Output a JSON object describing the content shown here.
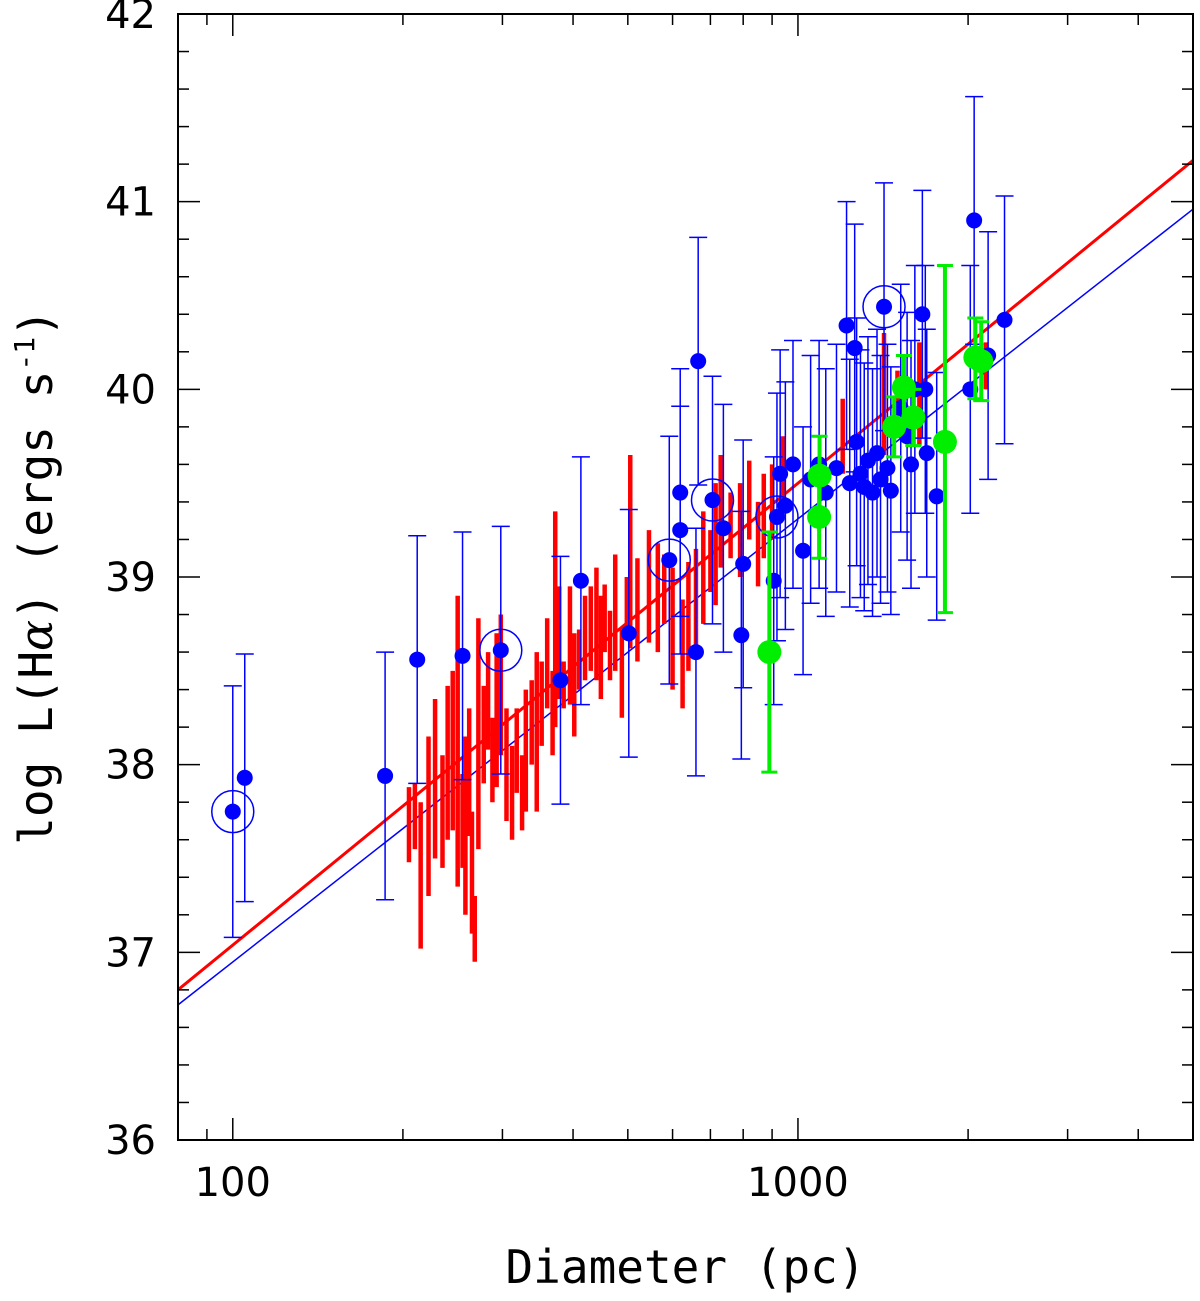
{
  "chart_data": {
    "type": "scatter",
    "title": "",
    "xlabel": "Diameter (pc)",
    "ylabel_parts": {
      "pre": "log L(H",
      "alpha": "α",
      "mid": ") (ergs s",
      "sup": "-1",
      "post": ")"
    },
    "x_scale": "log",
    "xlim": [
      80,
      5000
    ],
    "ylim": [
      36,
      42
    ],
    "x_major_ticks": [
      100,
      1000
    ],
    "x_major_labels": [
      "100",
      "1000"
    ],
    "y_major_ticks": [
      36,
      37,
      38,
      39,
      40,
      41,
      42
    ],
    "y_major_labels": [
      "36",
      "37",
      "38",
      "39",
      "40",
      "41",
      "42"
    ],
    "fit_lines": [
      {
        "name": "red fit",
        "color": "#ff0000",
        "x": [
          80,
          5000
        ],
        "y": [
          36.8,
          41.22
        ]
      },
      {
        "name": "blue fit",
        "color": "#0000ff",
        "x": [
          80,
          5000
        ],
        "y": [
          36.72,
          40.96
        ]
      }
    ],
    "series": [
      {
        "name": "blue sample",
        "color": "#0000ff",
        "points": [
          {
            "x": 100,
            "y": 37.75,
            "lo": 37.08,
            "hi": 38.42,
            "circled": true
          },
          {
            "x": 105,
            "y": 37.93,
            "lo": 37.27,
            "hi": 38.59
          },
          {
            "x": 186,
            "y": 37.94,
            "lo": 37.28,
            "hi": 38.6
          },
          {
            "x": 212,
            "y": 38.56,
            "lo": 37.9,
            "hi": 39.22
          },
          {
            "x": 255,
            "y": 38.58,
            "lo": 37.92,
            "hi": 39.24
          },
          {
            "x": 298,
            "y": 38.61,
            "lo": 37.95,
            "hi": 39.27,
            "circled": true
          },
          {
            "x": 380,
            "y": 38.45,
            "lo": 37.79,
            "hi": 39.11
          },
          {
            "x": 413,
            "y": 38.98,
            "lo": 38.32,
            "hi": 39.64
          },
          {
            "x": 502,
            "y": 38.7,
            "lo": 38.04,
            "hi": 39.36
          },
          {
            "x": 592,
            "y": 39.09,
            "lo": 38.43,
            "hi": 39.75,
            "circled": true
          },
          {
            "x": 619,
            "y": 39.25,
            "lo": 38.59,
            "hi": 39.91
          },
          {
            "x": 619,
            "y": 39.45,
            "lo": 38.79,
            "hi": 40.11
          },
          {
            "x": 660,
            "y": 38.6,
            "lo": 37.94,
            "hi": 39.26
          },
          {
            "x": 666,
            "y": 40.15,
            "lo": 39.49,
            "hi": 40.81
          },
          {
            "x": 706,
            "y": 39.41,
            "lo": 38.75,
            "hi": 40.07,
            "circled": true
          },
          {
            "x": 738,
            "y": 39.26,
            "lo": 38.6,
            "hi": 39.92
          },
          {
            "x": 794,
            "y": 38.69,
            "lo": 38.03,
            "hi": 39.35
          },
          {
            "x": 800,
            "y": 39.07,
            "lo": 38.41,
            "hi": 39.73
          },
          {
            "x": 906,
            "y": 38.98,
            "lo": 38.32,
            "hi": 39.64
          },
          {
            "x": 918,
            "y": 39.32,
            "lo": 38.66,
            "hi": 39.98,
            "circled": true
          },
          {
            "x": 930,
            "y": 39.55,
            "lo": 38.89,
            "hi": 40.21
          },
          {
            "x": 950,
            "y": 39.38,
            "lo": 38.72,
            "hi": 40.04
          },
          {
            "x": 980,
            "y": 39.6,
            "lo": 38.94,
            "hi": 40.26
          },
          {
            "x": 1021,
            "y": 39.14,
            "lo": 38.48,
            "hi": 39.8
          },
          {
            "x": 1053,
            "y": 39.52,
            "lo": 38.86,
            "hi": 40.18
          },
          {
            "x": 1090,
            "y": 39.6,
            "lo": 38.94,
            "hi": 40.26
          },
          {
            "x": 1120,
            "y": 39.45,
            "lo": 38.79,
            "hi": 40.11
          },
          {
            "x": 1170,
            "y": 39.58,
            "lo": 38.92,
            "hi": 40.24
          },
          {
            "x": 1219,
            "y": 40.34,
            "lo": 39.68,
            "hi": 41.0
          },
          {
            "x": 1235,
            "y": 39.5,
            "lo": 38.84,
            "hi": 40.16
          },
          {
            "x": 1260,
            "y": 40.22,
            "lo": 39.56,
            "hi": 40.88
          },
          {
            "x": 1270,
            "y": 39.72,
            "lo": 39.06,
            "hi": 40.38
          },
          {
            "x": 1290,
            "y": 39.55,
            "lo": 38.89,
            "hi": 40.21
          },
          {
            "x": 1310,
            "y": 39.48,
            "lo": 38.82,
            "hi": 40.14
          },
          {
            "x": 1330,
            "y": 39.62,
            "lo": 38.96,
            "hi": 40.28
          },
          {
            "x": 1355,
            "y": 39.45,
            "lo": 38.79,
            "hi": 40.11
          },
          {
            "x": 1380,
            "y": 39.66,
            "lo": 39.0,
            "hi": 40.32
          },
          {
            "x": 1400,
            "y": 39.52,
            "lo": 38.86,
            "hi": 40.18
          },
          {
            "x": 1420,
            "y": 40.44,
            "lo": 39.78,
            "hi": 41.1,
            "circled": true
          },
          {
            "x": 1440,
            "y": 39.58,
            "lo": 38.92,
            "hi": 40.24
          },
          {
            "x": 1460,
            "y": 39.46,
            "lo": 38.8,
            "hi": 40.12
          },
          {
            "x": 1520,
            "y": 39.9,
            "lo": 39.24,
            "hi": 40.56
          },
          {
            "x": 1560,
            "y": 39.75,
            "lo": 39.09,
            "hi": 40.41
          },
          {
            "x": 1585,
            "y": 39.6,
            "lo": 38.94,
            "hi": 40.26
          },
          {
            "x": 1610,
            "y": 40.0,
            "lo": 39.34,
            "hi": 40.66
          },
          {
            "x": 1660,
            "y": 40.4,
            "lo": 39.74,
            "hi": 41.06
          },
          {
            "x": 1680,
            "y": 40.0,
            "lo": 39.34,
            "hi": 40.66
          },
          {
            "x": 1690,
            "y": 39.66,
            "lo": 39.0,
            "hi": 40.32
          },
          {
            "x": 1760,
            "y": 39.43,
            "lo": 38.77,
            "hi": 40.09
          },
          {
            "x": 2018,
            "y": 40.0,
            "lo": 39.34,
            "hi": 40.66
          },
          {
            "x": 2050,
            "y": 40.9,
            "lo": 40.24,
            "hi": 41.56
          },
          {
            "x": 2170,
            "y": 40.18,
            "lo": 39.52,
            "hi": 40.84
          },
          {
            "x": 2320,
            "y": 40.37,
            "lo": 39.71,
            "hi": 41.03
          }
        ]
      },
      {
        "name": "green sample",
        "color": "#00ee00",
        "points": [
          {
            "x": 890,
            "y": 38.6,
            "lo": 37.96,
            "hi": 39.24
          },
          {
            "x": 1090,
            "y": 39.32,
            "lo": 39.1,
            "hi": 39.55
          },
          {
            "x": 1092,
            "y": 39.54,
            "lo": 39.32,
            "hi": 39.75
          },
          {
            "x": 1480,
            "y": 39.8,
            "lo": 39.64,
            "hi": 39.96
          },
          {
            "x": 1540,
            "y": 40.01,
            "lo": 39.82,
            "hi": 40.18
          },
          {
            "x": 1600,
            "y": 39.85,
            "lo": 39.7,
            "hi": 40.0
          },
          {
            "x": 1820,
            "y": 39.72,
            "lo": 38.81,
            "hi": 40.66
          },
          {
            "x": 2060,
            "y": 40.17,
            "lo": 39.95,
            "hi": 40.38
          },
          {
            "x": 2110,
            "y": 40.15,
            "lo": 39.94,
            "hi": 40.36
          }
        ]
      },
      {
        "name": "red sample",
        "color": "#ff0000",
        "segments": [
          [
            205,
            37.48,
            37.88
          ],
          [
            210,
            37.55,
            37.9
          ],
          [
            215,
            37.02,
            37.8
          ],
          [
            222,
            37.3,
            38.15
          ],
          [
            228,
            37.5,
            38.35
          ],
          [
            235,
            37.45,
            38.05
          ],
          [
            240,
            37.6,
            38.42
          ],
          [
            245,
            37.65,
            38.5
          ],
          [
            250,
            37.35,
            38.9
          ],
          [
            255,
            37.45,
            37.95
          ],
          [
            258,
            37.2,
            38.15
          ],
          [
            262,
            37.62,
            38.3
          ],
          [
            265,
            37.1,
            37.75
          ],
          [
            268,
            36.95,
            37.3
          ],
          [
            272,
            37.55,
            38.78
          ],
          [
            278,
            37.9,
            38.42
          ],
          [
            283,
            38.08,
            38.6
          ],
          [
            288,
            37.8,
            38.25
          ],
          [
            293,
            37.88,
            38.7
          ],
          [
            298,
            38.05,
            38.8
          ],
          [
            305,
            37.7,
            38.3
          ],
          [
            312,
            37.6,
            38.1
          ],
          [
            318,
            37.85,
            38.3
          ],
          [
            325,
            37.65,
            38.05
          ],
          [
            330,
            37.75,
            38.4
          ],
          [
            338,
            38.0,
            38.45
          ],
          [
            345,
            37.75,
            38.6
          ],
          [
            352,
            38.1,
            38.55
          ],
          [
            360,
            38.3,
            38.78
          ],
          [
            368,
            38.05,
            38.5
          ],
          [
            372,
            38.2,
            39.35
          ],
          [
            378,
            38.35,
            38.95
          ],
          [
            385,
            38.3,
            38.55
          ],
          [
            395,
            38.32,
            38.95
          ],
          [
            402,
            38.15,
            38.7
          ],
          [
            410,
            38.4,
            38.72
          ],
          [
            420,
            38.45,
            38.9
          ],
          [
            430,
            38.5,
            38.95
          ],
          [
            440,
            38.45,
            39.05
          ],
          [
            448,
            38.35,
            38.9
          ],
          [
            455,
            38.6,
            38.96
          ],
          [
            465,
            38.45,
            38.82
          ],
          [
            475,
            38.5,
            39.12
          ],
          [
            488,
            38.25,
            38.72
          ],
          [
            498,
            38.7,
            39.0
          ],
          [
            505,
            38.62,
            39.65
          ],
          [
            520,
            38.55,
            39.1
          ],
          [
            545,
            38.65,
            39.25
          ],
          [
            565,
            38.6,
            39.18
          ],
          [
            580,
            38.75,
            39.12
          ],
          [
            600,
            38.4,
            39.05
          ],
          [
            625,
            38.3,
            38.88
          ],
          [
            640,
            38.5,
            39.08
          ],
          [
            660,
            38.6,
            39.15
          ],
          [
            680,
            38.75,
            39.35
          ],
          [
            700,
            38.92,
            39.25
          ],
          [
            715,
            38.85,
            39.5
          ],
          [
            730,
            39.05,
            39.65
          ],
          [
            760,
            39.1,
            39.45
          ],
          [
            790,
            39.0,
            39.5
          ],
          [
            820,
            39.2,
            39.62
          ],
          [
            850,
            38.95,
            39.4
          ],
          [
            870,
            39.1,
            39.55
          ],
          [
            900,
            39.2,
            39.6
          ],
          [
            940,
            39.35,
            39.75
          ],
          [
            1200,
            39.55,
            39.95
          ],
          [
            1420,
            39.65,
            40.3
          ],
          [
            1500,
            39.8,
            40.1
          ],
          [
            1640,
            39.7,
            40.25
          ],
          [
            2150,
            40.0,
            40.25
          ]
        ]
      }
    ]
  }
}
